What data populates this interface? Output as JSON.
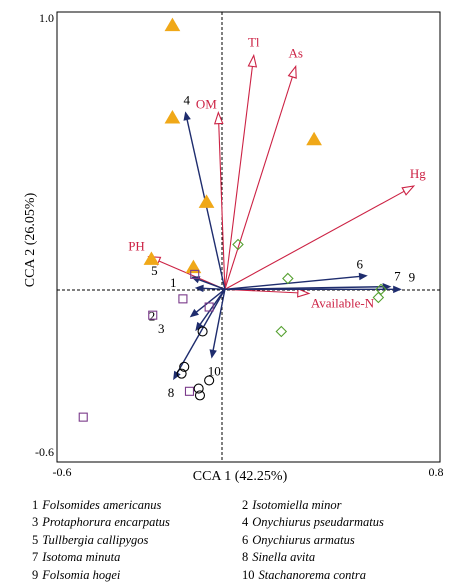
{
  "chart_data": {
    "type": "scatter",
    "title": "",
    "xlabel": "CCA 1 (42.25%)",
    "ylabel": "CCA 2 (26.05%)",
    "x_ticks": [
      "-0.6",
      "0.8"
    ],
    "y_ticks": [
      "1.0",
      "-0.6"
    ],
    "xlim": [
      -0.64,
      0.82
    ],
    "ylim": [
      -0.635,
      1.02
    ],
    "grid": false,
    "colors": {
      "environment": "#cc2244",
      "species": "#1f2d6e",
      "triangle": "#f0a818",
      "diamond": "#55a030",
      "square": "#7a3a8a",
      "circle": "#000000"
    },
    "environmental_vectors": [
      {
        "label": "Tl",
        "x": 0.11,
        "y": 0.86
      },
      {
        "label": "As",
        "x": 0.27,
        "y": 0.82
      },
      {
        "label": "OM",
        "x": -0.025,
        "y": 0.65
      },
      {
        "label": "Hg",
        "x": 0.72,
        "y": 0.38
      },
      {
        "label": "PH",
        "x": -0.29,
        "y": 0.12
      },
      {
        "label": "Available-N",
        "x": 0.32,
        "y": -0.015
      }
    ],
    "species_vectors": [
      {
        "label": "1",
        "x": -0.11,
        "y": 0.005
      },
      {
        "label": "2",
        "x": -0.13,
        "y": -0.1
      },
      {
        "label": "3",
        "x": -0.11,
        "y": -0.15
      },
      {
        "label": "4",
        "x": -0.15,
        "y": 0.65
      },
      {
        "label": "5",
        "x": -0.125,
        "y": 0.045
      },
      {
        "label": "6",
        "x": 0.54,
        "y": 0.05
      },
      {
        "label": "7",
        "x": 0.63,
        "y": 0.01
      },
      {
        "label": "8",
        "x": -0.195,
        "y": -0.33
      },
      {
        "label": "9",
        "x": 0.67,
        "y": 0.0
      },
      {
        "label": "10",
        "x": -0.05,
        "y": -0.25
      }
    ],
    "sample_points": [
      {
        "marker": "triangle",
        "x": -0.28,
        "y": 0.11
      },
      {
        "marker": "triangle",
        "x": -0.12,
        "y": 0.08
      },
      {
        "marker": "triangle",
        "x": -0.07,
        "y": 0.32
      },
      {
        "marker": "triangle",
        "x": 0.34,
        "y": 0.55
      },
      {
        "marker": "triangle",
        "x": -0.2,
        "y": 0.63
      },
      {
        "marker": "triangle",
        "x": -0.2,
        "y": 0.97
      },
      {
        "marker": "diamond",
        "x": 0.05,
        "y": 0.165
      },
      {
        "marker": "diamond",
        "x": 0.24,
        "y": 0.04
      },
      {
        "marker": "diamond",
        "x": 0.595,
        "y": 0.0
      },
      {
        "marker": "diamond",
        "x": 0.585,
        "y": -0.03
      },
      {
        "marker": "diamond",
        "x": 0.215,
        "y": -0.155
      },
      {
        "marker": "square",
        "x": -0.115,
        "y": 0.055
      },
      {
        "marker": "square",
        "x": -0.16,
        "y": -0.035
      },
      {
        "marker": "square",
        "x": -0.06,
        "y": -0.065
      },
      {
        "marker": "square",
        "x": -0.275,
        "y": -0.095
      },
      {
        "marker": "square",
        "x": -0.135,
        "y": -0.375
      },
      {
        "marker": "square",
        "x": -0.54,
        "y": -0.47
      },
      {
        "marker": "circle",
        "x": -0.085,
        "y": -0.155
      },
      {
        "marker": "circle",
        "x": -0.155,
        "y": -0.285
      },
      {
        "marker": "circle",
        "x": -0.165,
        "y": -0.31
      },
      {
        "marker": "circle",
        "x": -0.06,
        "y": -0.335
      },
      {
        "marker": "circle",
        "x": -0.1,
        "y": -0.365
      },
      {
        "marker": "circle",
        "x": -0.095,
        "y": -0.39
      }
    ]
  },
  "legend": [
    [
      {
        "num": "1",
        "name": "Folsomides americanus"
      },
      {
        "num": "2",
        "name": "Isotomiella minor"
      }
    ],
    [
      {
        "num": "3",
        "name": "Protaphorura encarpatus"
      },
      {
        "num": "4",
        "name": "Onychiurus pseudarmatus"
      }
    ],
    [
      {
        "num": "5",
        "name": "Tullbergia callipygos"
      },
      {
        "num": "6",
        "name": "Onychiurus armatus"
      }
    ],
    [
      {
        "num": "7",
        "name": "Isotoma minuta"
      },
      {
        "num": "8",
        "name": "Sinella avita"
      }
    ],
    [
      {
        "num": "9",
        "name": "Folsomia hogei"
      },
      {
        "num": "10",
        "name": "Stachanorema contra"
      }
    ]
  ]
}
